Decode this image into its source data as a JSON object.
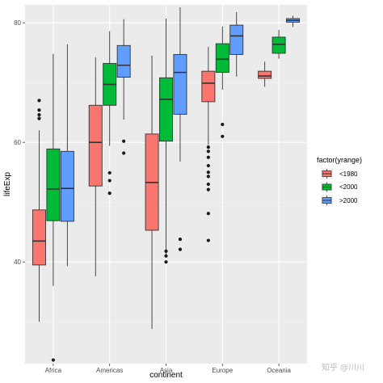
{
  "chart_data": {
    "type": "box",
    "xlabel": "continent",
    "ylabel": "lifeExp",
    "categories": [
      "Africa",
      "Americas",
      "Asia",
      "Europe",
      "Oceania"
    ],
    "yticks": [
      40,
      60,
      80
    ],
    "ylim": [
      23,
      83
    ],
    "grid": true,
    "legend": {
      "title": "factor(yrange)",
      "position": "right",
      "entries": [
        {
          "label": "<1980",
          "color": "#F8766D"
        },
        {
          "label": "<2000",
          "color": "#00BA38"
        },
        {
          "label": ">2000",
          "color": "#619CFF"
        }
      ]
    },
    "series": [
      {
        "name": "<1980",
        "color": "#F8766D",
        "boxes": [
          {
            "category": "Africa",
            "min": 30.0,
            "q1": 39.5,
            "median": 43.5,
            "q3": 48.7,
            "max": 62.0,
            "outliers": [
              64.0,
              64.6,
              65.4,
              67.0
            ]
          },
          {
            "category": "Americas",
            "min": 37.6,
            "q1": 52.7,
            "median": 60.0,
            "q3": 66.2,
            "max": 74.2,
            "outliers": []
          },
          {
            "category": "Asia",
            "min": 28.8,
            "q1": 45.3,
            "median": 53.3,
            "q3": 61.4,
            "max": 74.5,
            "outliers": []
          },
          {
            "category": "Europe",
            "min": 59.6,
            "q1": 66.8,
            "median": 69.9,
            "q3": 71.9,
            "max": 76.0,
            "outliers": [
              43.6,
              48.1,
              52.1,
              53.0,
              54.3,
              55.0,
              56.1,
              57.5,
              58.5,
              59.2
            ]
          },
          {
            "category": "Oceania",
            "min": 69.3,
            "q1": 70.7,
            "median": 71.1,
            "q3": 71.9,
            "max": 73.5,
            "outliers": []
          }
        ]
      },
      {
        "name": "<2000",
        "color": "#00BA38",
        "boxes": [
          {
            "category": "Africa",
            "min": 36.0,
            "q1": 46.9,
            "median": 52.2,
            "q3": 58.9,
            "max": 74.8,
            "outliers": [
              23.6
            ]
          },
          {
            "category": "Americas",
            "min": 59.4,
            "q1": 66.2,
            "median": 69.7,
            "q3": 73.2,
            "max": 78.6,
            "outliers": [
              51.5,
              53.6,
              54.9
            ]
          },
          {
            "category": "Asia",
            "min": 40.8,
            "q1": 60.2,
            "median": 67.2,
            "q3": 70.8,
            "max": 80.7,
            "outliers": [
              40.0,
              41.0,
              41.8
            ]
          },
          {
            "category": "Europe",
            "min": 68.8,
            "q1": 71.7,
            "median": 73.9,
            "q3": 76.5,
            "max": 79.4,
            "outliers": [
              61.0,
              63.0
            ]
          },
          {
            "category": "Oceania",
            "min": 74.0,
            "q1": 74.9,
            "median": 76.4,
            "q3": 77.6,
            "max": 78.8,
            "outliers": []
          }
        ]
      },
      {
        "name": ">2000",
        "color": "#619CFF",
        "boxes": [
          {
            "category": "Africa",
            "min": 39.3,
            "q1": 46.8,
            "median": 52.3,
            "q3": 58.5,
            "max": 76.4,
            "outliers": []
          },
          {
            "category": "Americas",
            "min": 63.8,
            "q1": 70.9,
            "median": 72.9,
            "q3": 76.2,
            "max": 80.6,
            "outliers": [
              58.2,
              60.2
            ]
          },
          {
            "category": "Asia",
            "min": 56.8,
            "q1": 64.7,
            "median": 71.7,
            "q3": 74.7,
            "max": 82.6,
            "outliers": [
              42.1,
              43.8
            ]
          },
          {
            "category": "Europe",
            "min": 71.0,
            "q1": 74.7,
            "median": 77.8,
            "q3": 79.6,
            "max": 81.8,
            "outliers": []
          },
          {
            "category": "Oceania",
            "min": 79.3,
            "q1": 80.1,
            "median": 80.4,
            "q3": 80.7,
            "max": 81.2,
            "outliers": []
          }
        ]
      }
    ]
  },
  "watermark": "知乎 @川川"
}
